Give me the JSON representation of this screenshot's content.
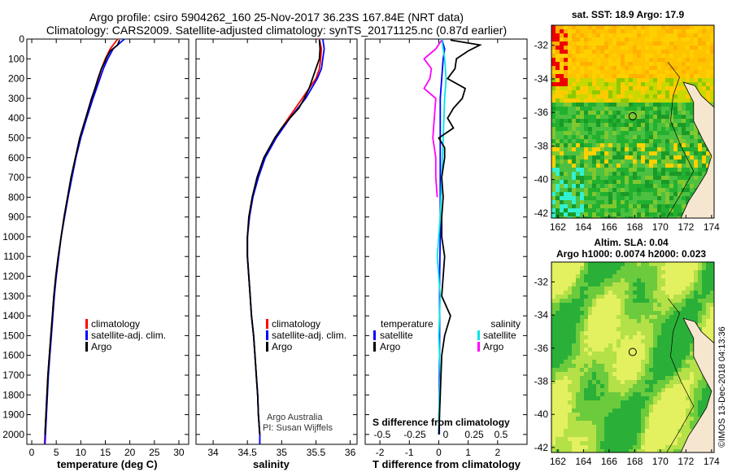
{
  "title": {
    "line1": "Argo profile: csiro 5904262_160 25-Nov-2017 36.23S 167.84E (NRT data)",
    "line2": "Climatology: CARS2009. Satellite-adjusted climatology: synTS_20171125.nc (0.87d earlier)"
  },
  "colors": {
    "climatology": "#ff0000",
    "satellite_clim": "#0000ff",
    "argo": "#000000",
    "t_satellite": "#0000ff",
    "s_satellite": "#00e5e5",
    "s_argo": "#ff00ff"
  },
  "credit": {
    "line1": "Argo Australia",
    "line2": "PI: Susan Wijffels"
  },
  "watermark": "©IMOS 13-Dec-2018 04:13:36",
  "chart_data": [
    {
      "type": "line",
      "id": "temperature-profile",
      "xlabel": "temperature (deg C)",
      "xlim": [
        -1,
        32
      ],
      "ylim": [
        2050,
        0
      ],
      "xticks": [
        0,
        5,
        10,
        15,
        20,
        25,
        30
      ],
      "yticks": [
        0,
        100,
        200,
        300,
        400,
        500,
        600,
        700,
        800,
        900,
        1000,
        1100,
        1200,
        1300,
        1400,
        1500,
        1600,
        1700,
        1800,
        1900,
        2000
      ],
      "legend": [
        "climatology",
        "satellite-adj. clim.",
        "Argo"
      ],
      "legend_placement": "lower-right",
      "series": [
        {
          "name": "climatology",
          "color": "#ff0000",
          "depth": [
            0,
            50,
            100,
            150,
            200,
            300,
            400,
            500,
            600,
            700,
            800,
            900,
            1000,
            1100,
            1200,
            1300,
            1400,
            1500,
            1600,
            1700,
            1800,
            1900,
            2000,
            2050
          ],
          "values": [
            17.5,
            16.0,
            15.0,
            14.2,
            13.6,
            12.2,
            11.0,
            9.8,
            8.9,
            8.1,
            7.3,
            6.6,
            6.0,
            5.4,
            4.9,
            4.5,
            4.2,
            3.9,
            3.6,
            3.3,
            3.1,
            2.9,
            2.7,
            2.6
          ]
        },
        {
          "name": "satellite-adj. clim.",
          "color": "#0000ff",
          "depth": [
            0,
            50,
            100,
            150,
            200,
            300,
            400,
            500,
            600,
            700,
            800,
            900,
            1000,
            1100,
            1200,
            1300,
            1400,
            1500,
            1600,
            1700,
            1800,
            1900,
            2000,
            2050
          ],
          "values": [
            18.9,
            16.6,
            15.5,
            14.6,
            13.9,
            12.5,
            11.2,
            10.0,
            9.0,
            8.2,
            7.4,
            6.7,
            6.0,
            5.5,
            5.0,
            4.6,
            4.3,
            4.0,
            3.7,
            3.4,
            3.2,
            3.0,
            2.8,
            2.7
          ]
        },
        {
          "name": "Argo",
          "color": "#000000",
          "depth": [
            5,
            30,
            60,
            90,
            120,
            150,
            200,
            250,
            300,
            350,
            400,
            450,
            500,
            600,
            700,
            800,
            900,
            1000,
            1100,
            1200,
            1300,
            1400,
            1500,
            1600,
            1700,
            1800,
            1900,
            2000
          ],
          "values": [
            17.9,
            17.5,
            16.0,
            15.3,
            14.8,
            14.2,
            13.5,
            12.9,
            12.2,
            11.6,
            11.0,
            10.4,
            9.8,
            8.9,
            8.0,
            7.3,
            6.6,
            6.0,
            5.4,
            4.9,
            4.5,
            4.2,
            3.9,
            3.6,
            3.3,
            3.1,
            2.9,
            2.7
          ]
        }
      ]
    },
    {
      "type": "line",
      "id": "salinity-profile",
      "xlabel": "salinity",
      "xlim": [
        33.75,
        36.1
      ],
      "ylim": [
        2050,
        0
      ],
      "xticks": [
        34,
        34.5,
        35,
        35.5,
        36
      ],
      "legend": [
        "climatology",
        "satellite-adj. clim.",
        "Argo"
      ],
      "legend_placement": "lower-right",
      "series": [
        {
          "name": "climatology",
          "color": "#ff0000",
          "depth": [
            0,
            50,
            100,
            150,
            200,
            300,
            400,
            500,
            600,
            700,
            800,
            900,
            1000,
            1100,
            1200,
            1300,
            1400,
            1500,
            1600,
            1700,
            1800,
            1900,
            2000,
            2050
          ],
          "values": [
            35.55,
            35.58,
            35.57,
            35.55,
            35.5,
            35.3,
            35.1,
            34.9,
            34.75,
            34.65,
            34.58,
            34.53,
            34.5,
            34.5,
            34.52,
            34.54,
            34.56,
            34.59,
            34.61,
            34.63,
            34.65,
            34.66,
            34.68,
            34.68
          ]
        },
        {
          "name": "satellite-adj. clim.",
          "color": "#0000ff",
          "depth": [
            0,
            50,
            100,
            150,
            200,
            300,
            400,
            500,
            600,
            700,
            800,
            900,
            1000,
            1100,
            1200,
            1300,
            1400,
            1500,
            1600,
            1700,
            1800,
            1900,
            2000,
            2050
          ],
          "values": [
            35.6,
            35.62,
            35.6,
            35.58,
            35.52,
            35.35,
            35.12,
            34.92,
            34.76,
            34.66,
            34.58,
            34.53,
            34.5,
            34.5,
            34.52,
            34.54,
            34.56,
            34.59,
            34.61,
            34.63,
            34.65,
            34.66,
            34.68,
            34.68
          ]
        },
        {
          "name": "Argo",
          "color": "#000000",
          "depth": [
            5,
            50,
            100,
            150,
            200,
            250,
            300,
            350,
            400,
            450,
            500,
            600,
            700,
            800,
            900,
            1000,
            1100,
            1200,
            1300,
            1400,
            1500,
            1600,
            1700,
            1800,
            1900,
            2000
          ],
          "values": [
            35.55,
            35.56,
            35.55,
            35.5,
            35.45,
            35.4,
            35.33,
            35.25,
            35.12,
            35.0,
            34.9,
            34.74,
            34.64,
            34.57,
            34.52,
            34.5,
            34.5,
            34.52,
            34.54,
            34.56,
            34.59,
            34.61,
            34.63,
            34.65,
            34.66,
            34.68
          ]
        }
      ]
    },
    {
      "type": "line",
      "id": "difference-profile",
      "xlabel": "T difference from climatology",
      "x2label": "S difference from climatology",
      "xlim": [
        -2.5,
        3.0
      ],
      "ylim": [
        2050,
        0
      ],
      "xticks": [
        -2,
        -1,
        0,
        1,
        2
      ],
      "x2ticks": [
        "-0.5",
        "-0.25",
        "0",
        "0.25",
        "0.5"
      ],
      "legend_left_title": "temperature",
      "legend_right_title": "salinity",
      "legend_left": [
        "satellite",
        "Argo"
      ],
      "legend_right": [
        "satellite",
        "Argo"
      ],
      "series": [
        {
          "name": "T satellite",
          "color": "#0000ff",
          "depth": [
            0,
            50,
            100,
            200,
            300,
            400,
            500,
            600,
            800,
            1000,
            1200,
            1500,
            1800,
            2000
          ],
          "values": [
            0.1,
            0.2,
            0.15,
            0.1,
            0.05,
            0.05,
            0.05,
            0.05,
            0.05,
            0.05,
            0.03,
            0.03,
            0.02,
            0.02
          ]
        },
        {
          "name": "S satellite",
          "color": "#00e5e5",
          "depth": [
            0,
            100,
            200,
            300,
            500,
            700,
            900,
            1100,
            1300,
            1500,
            1700,
            1900,
            2000
          ],
          "values": [
            0.1,
            0.2,
            0.25,
            0.2,
            0.15,
            0.1,
            0.05,
            -0.05,
            0.05,
            0.0,
            0.05,
            0.0,
            0.0
          ]
        },
        {
          "name": "S Argo",
          "color": "#ff00ff",
          "depth": [
            5,
            50,
            100,
            150,
            200,
            250,
            300,
            400,
            500,
            600,
            700,
            800
          ],
          "values": [
            0.1,
            -0.1,
            -0.5,
            -0.25,
            -0.3,
            -0.5,
            -0.1,
            -0.15,
            -0.2,
            -0.1,
            -0.1,
            -0.05
          ]
        },
        {
          "name": "T Argo",
          "color": "#000000",
          "depth": [
            5,
            30,
            60,
            100,
            150,
            200,
            250,
            300,
            350,
            400,
            450,
            500,
            550,
            600,
            700,
            800,
            900,
            1000,
            1100,
            1200,
            1300,
            1400,
            1500,
            1600,
            1800,
            2000
          ],
          "values": [
            0.4,
            1.4,
            1.0,
            0.6,
            0.55,
            0.3,
            0.9,
            0.8,
            0.5,
            0.3,
            0.5,
            0.0,
            0.2,
            0.2,
            0.1,
            0.15,
            0.1,
            0.1,
            0.2,
            0.15,
            0.1,
            0.4,
            0.2,
            0.1,
            0.05,
            0.0
          ]
        }
      ]
    },
    {
      "type": "heatmap",
      "id": "sst-map",
      "title": "sat. SST: 18.9 Argo: 17.9",
      "xlim": [
        161.5,
        174.2
      ],
      "ylim": [
        -42.3,
        -30.8
      ],
      "xticks": [
        162,
        164,
        166,
        168,
        170,
        172,
        174
      ],
      "yticks": [
        -32,
        -34,
        -36,
        -38,
        -40,
        -42
      ],
      "marker": {
        "lon": 167.84,
        "lat": -36.23
      }
    },
    {
      "type": "heatmap",
      "id": "sla-map",
      "title1": "Altim. SLA: 0.04",
      "title2": "Argo h1000: 0.0074 h2000: 0.023",
      "xlim": [
        161.5,
        174.2
      ],
      "ylim": [
        -42.3,
        -30.8
      ],
      "xticks": [
        162,
        164,
        166,
        168,
        170,
        172,
        174
      ],
      "yticks": [
        -32,
        -34,
        -36,
        -38,
        -40,
        -42
      ],
      "marker": {
        "lon": 167.84,
        "lat": -36.23
      }
    }
  ]
}
